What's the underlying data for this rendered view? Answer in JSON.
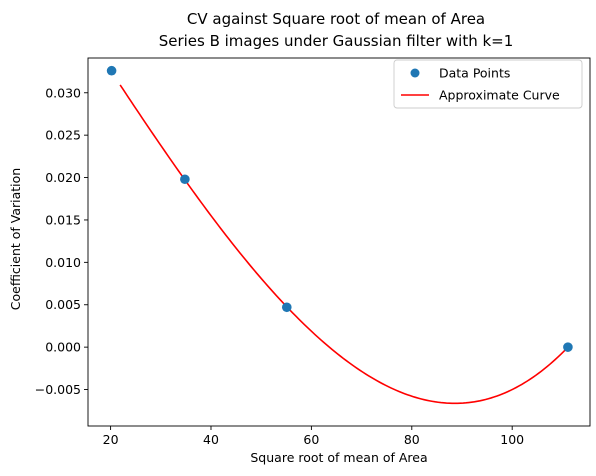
{
  "chart_data": {
    "type": "scatter",
    "title_line1": "CV against Square root of mean of Area",
    "title_line2": "Series B images under Gaussian filter with k=1",
    "xlabel": "Square root of mean of Area",
    "ylabel": "Coefficient of Variation",
    "xlim": [
      15.5,
      115.5
    ],
    "ylim": [
      -0.0093,
      0.0341
    ],
    "grid": false,
    "legend_position": "top-right",
    "x_ticks": [
      20,
      40,
      60,
      80,
      100
    ],
    "x_tick_labels": [
      "20",
      "40",
      "60",
      "80",
      "100"
    ],
    "y_ticks": [
      -0.005,
      0.0,
      0.005,
      0.01,
      0.015,
      0.02,
      0.025,
      0.03
    ],
    "y_tick_labels": [
      "−0.005",
      "0.000",
      "0.005",
      "0.010",
      "0.015",
      "0.020",
      "0.025",
      "0.030"
    ],
    "series": [
      {
        "name": "Data Points",
        "kind": "scatter",
        "color": "#1f77b4",
        "x": [
          20.2,
          34.8,
          55.1,
          111.1
        ],
        "y": [
          0.0326,
          0.0198,
          0.0047,
          0.0
        ]
      },
      {
        "name": "Approximate Curve",
        "kind": "line",
        "color": "#ff0000",
        "x_range": [
          21.9,
          110.8
        ],
        "control_points": {
          "x": [
            21.9,
            34.8,
            55.1,
            88.5,
            110.8
          ],
          "y": [
            0.0309,
            0.0198,
            0.0047,
            -0.0066,
            -0.0002
          ]
        }
      }
    ]
  }
}
